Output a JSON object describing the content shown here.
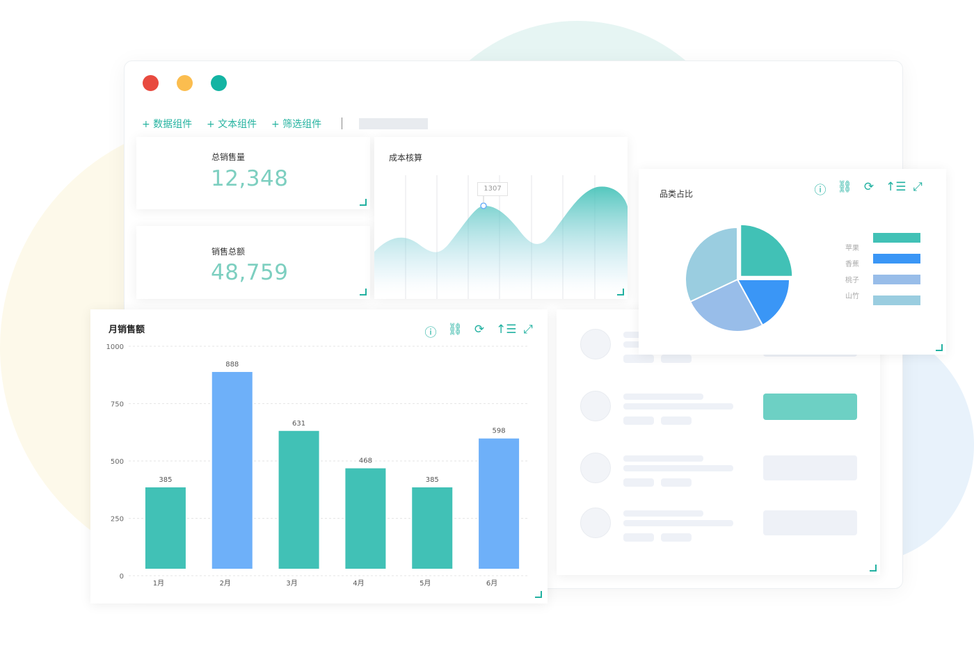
{
  "toolbar": {
    "add_data": "+ 数据组件",
    "add_text": "+ 文本组件",
    "add_filter": "+ 筛选组件"
  },
  "kpi": [
    {
      "label": "总销售量",
      "value": "12,348"
    },
    {
      "label": "销售总额",
      "value": "48,759"
    }
  ],
  "area_card": {
    "title": "成本核算",
    "tooltip": "1307"
  },
  "pie_card": {
    "title": "品类占比"
  },
  "bar_card": {
    "title": "月销售额"
  },
  "icons": [
    "info-icon",
    "unlink-icon",
    "refresh-icon",
    "sort-icon",
    "fullscreen-icon"
  ],
  "colors": {
    "teal": "#41c1b6",
    "blue": "#6eb0f9",
    "window_red": "#e84a3f",
    "window_yellow": "#fbbd4f",
    "window_green": "#14b4a3"
  },
  "chart_data": [
    {
      "type": "bar",
      "title": "月销售额",
      "categories": [
        "1月",
        "2月",
        "3月",
        "4月",
        "5月",
        "6月"
      ],
      "values": [
        385,
        888,
        631,
        468,
        385,
        598
      ],
      "ylim": [
        0,
        1000
      ],
      "yticks": [
        "0",
        "250",
        "500",
        "750",
        "1000"
      ],
      "grid": true,
      "colors": [
        "#41c1b6",
        "#6eb0f9",
        "#41c1b6",
        "#41c1b6",
        "#41c1b6",
        "#6eb0f9"
      ]
    },
    {
      "type": "pie",
      "title": "品类占比",
      "legend_position": "right",
      "series": [
        {
          "name": "苹果",
          "value": 25,
          "color": "#41c1b6"
        },
        {
          "name": "香蕉",
          "value": 17,
          "color": "#3a96f6"
        },
        {
          "name": "桃子",
          "value": 26,
          "color": "#98bde9"
        },
        {
          "name": "山竹",
          "value": 32,
          "color": "#9acde0"
        }
      ]
    },
    {
      "type": "area",
      "title": "成本核算",
      "annotation": "1307"
    }
  ]
}
